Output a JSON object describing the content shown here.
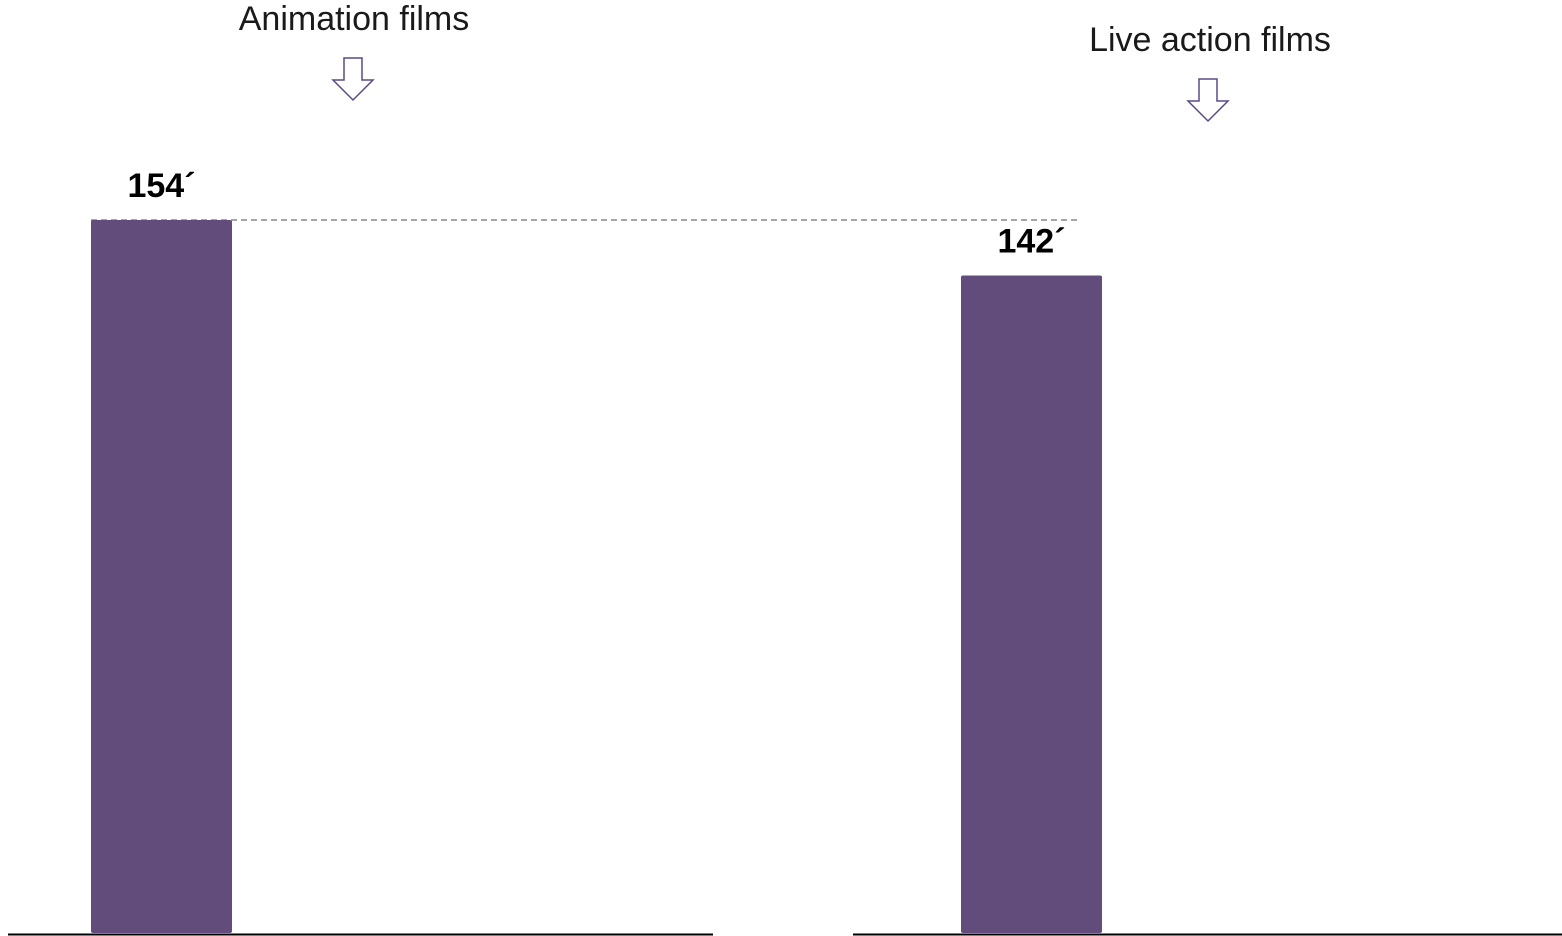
{
  "chart_data": {
    "type": "bar",
    "categories": [
      "Animation films",
      "Live action films"
    ],
    "values": [
      154,
      142
    ],
    "value_labels": [
      "154´",
      "142´"
    ],
    "bar_color": "#614c7c",
    "arrow_color": "#5b4a87",
    "reference_line": {
      "value": 154,
      "style": "dashed",
      "color": "#888888"
    },
    "title": "",
    "xlabel": "",
    "ylabel": "",
    "ylim": [
      0,
      154
    ],
    "grid": false,
    "legend": "none",
    "category_icon": "down-arrow-icon"
  }
}
